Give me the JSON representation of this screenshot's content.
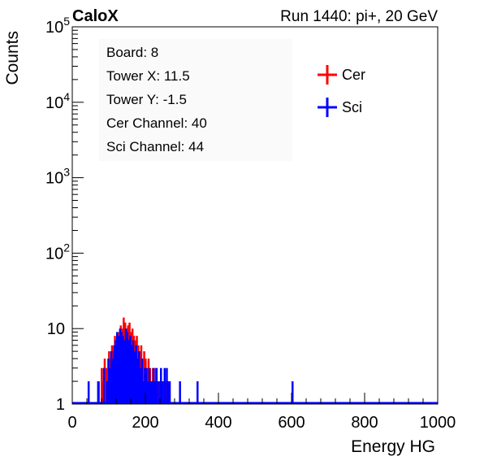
{
  "chart_data": {
    "type": "bar",
    "experiment_label": "CaloX",
    "run_label": "Run 1440: pi+, 20 GeV",
    "xlabel": "Energy HG",
    "ylabel": "Counts",
    "xlim": [
      0,
      1000
    ],
    "ylim": [
      1,
      100000
    ],
    "y_scale": "log",
    "grid": false,
    "legend_placement": "top-right",
    "x_ticks": [
      "0",
      "200",
      "400",
      "600",
      "800",
      "1000"
    ],
    "y_ticks": [
      {
        "base": "1",
        "exp": ""
      },
      {
        "base": "10",
        "exp": ""
      },
      {
        "base": "10",
        "exp": "2"
      },
      {
        "base": "10",
        "exp": "3"
      },
      {
        "base": "10",
        "exp": "4"
      },
      {
        "base": "10",
        "exp": "5"
      }
    ],
    "info_box": [
      "Board: 8",
      "Tower X: 11.5",
      "Tower Y: -1.5",
      "Cer Channel: 40",
      "Sci Channel: 44"
    ],
    "bin_width": 4,
    "series": [
      {
        "name": "Cer",
        "color": "#ff0000",
        "points": [
          [
            70,
            2
          ],
          [
            78,
            3
          ],
          [
            82,
            2
          ],
          [
            86,
            4
          ],
          [
            90,
            3
          ],
          [
            94,
            2
          ],
          [
            98,
            5
          ],
          [
            102,
            4
          ],
          [
            106,
            6
          ],
          [
            110,
            5
          ],
          [
            114,
            8
          ],
          [
            118,
            6
          ],
          [
            122,
            9
          ],
          [
            126,
            8
          ],
          [
            130,
            11
          ],
          [
            134,
            10
          ],
          [
            138,
            14
          ],
          [
            142,
            12
          ],
          [
            146,
            10
          ],
          [
            150,
            11
          ],
          [
            154,
            12
          ],
          [
            158,
            9
          ],
          [
            162,
            10
          ],
          [
            166,
            8
          ],
          [
            170,
            7
          ],
          [
            174,
            8
          ],
          [
            178,
            6
          ],
          [
            182,
            5
          ],
          [
            186,
            6
          ],
          [
            190,
            4
          ],
          [
            194,
            5
          ],
          [
            198,
            4
          ],
          [
            202,
            3
          ],
          [
            206,
            4
          ],
          [
            210,
            3
          ],
          [
            214,
            2
          ],
          [
            218,
            3
          ],
          [
            222,
            2
          ],
          [
            226,
            3
          ],
          [
            230,
            2
          ],
          [
            238,
            2
          ],
          [
            246,
            2
          ],
          [
            254,
            2
          ]
        ]
      },
      {
        "name": "Sci",
        "color": "#0000ff",
        "points": [
          [
            42,
            2
          ],
          [
            68,
            2
          ],
          [
            84,
            3
          ],
          [
            92,
            2
          ],
          [
            96,
            4
          ],
          [
            100,
            3
          ],
          [
            104,
            5
          ],
          [
            108,
            4
          ],
          [
            112,
            6
          ],
          [
            116,
            7
          ],
          [
            120,
            9
          ],
          [
            124,
            8
          ],
          [
            128,
            10
          ],
          [
            132,
            9
          ],
          [
            136,
            8
          ],
          [
            140,
            7
          ],
          [
            144,
            10
          ],
          [
            148,
            9
          ],
          [
            152,
            7
          ],
          [
            156,
            8
          ],
          [
            160,
            6
          ],
          [
            164,
            7
          ],
          [
            168,
            5
          ],
          [
            172,
            6
          ],
          [
            176,
            4
          ],
          [
            180,
            5
          ],
          [
            184,
            3
          ],
          [
            188,
            4
          ],
          [
            192,
            2
          ],
          [
            196,
            3
          ],
          [
            200,
            3
          ],
          [
            204,
            2
          ],
          [
            208,
            3
          ],
          [
            212,
            2
          ],
          [
            216,
            2
          ],
          [
            220,
            3
          ],
          [
            224,
            2
          ],
          [
            228,
            3
          ],
          [
            234,
            2
          ],
          [
            240,
            3
          ],
          [
            244,
            2
          ],
          [
            250,
            3
          ],
          [
            256,
            3
          ],
          [
            260,
            2
          ],
          [
            264,
            2
          ],
          [
            292,
            2
          ],
          [
            340,
            2
          ],
          [
            600,
            2
          ]
        ]
      }
    ]
  }
}
